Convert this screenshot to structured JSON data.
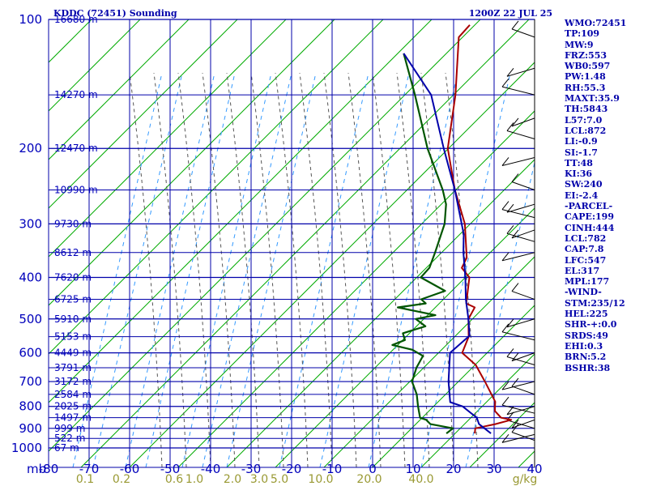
{
  "header": {
    "title": "KDDC (72451) Sounding",
    "time": "1200Z 22 JUL 25"
  },
  "params": [
    "WMO:72451",
    "TP:109",
    "MW:9",
    "FRZ:553",
    "WB0:597",
    "PW:1.48",
    "RH:55.3",
    "MAXT:35.9",
    "TH:5843",
    "L57:7.0",
    "LCL:872",
    "LI:-0.9",
    "SI:-1.7",
    "TT:48",
    "KI:36",
    "SW:240",
    "EI:-2.4",
    "-PARCEL-",
    "CAPE:199",
    "CINH:444",
    "LCL:782",
    "CAP:7.8",
    "LFC:547",
    "EL:317",
    "MPL:177",
    "-WIND-",
    "STM:235/12",
    "HEL:225",
    "SHR-+:0.0",
    "SRDS:49",
    "EHI:0.3",
    "BRN:5.2",
    "BSHR:38"
  ],
  "colors": {
    "grid": "#0000aa",
    "temperature": "#aa0000",
    "dewpoint": "#005500",
    "parcel": "#0000aa",
    "dry_adiabat": "#00aa00",
    "moist_adiabat": "#555555",
    "mixing_ratio": "#3399ff"
  },
  "chart_data": {
    "type": "line",
    "y_scale": "log",
    "ylabel": "mb",
    "ylim": [
      1000,
      100
    ],
    "xlim": [
      -80,
      40
    ],
    "pressure_ticks": [
      "100",
      "200",
      "300",
      "400",
      "500",
      "600",
      "700",
      "800",
      "900",
      "1000"
    ],
    "temperature_ticks": [
      "-80",
      "-70",
      "-60",
      "-50",
      "-40",
      "-30",
      "-20",
      "-10",
      "0",
      "10",
      "20",
      "30",
      "40"
    ],
    "mixing_ratio_ticks": [
      {
        "value": 0.1,
        "label": "0.1"
      },
      {
        "value": 0.2,
        "label": "0.2"
      },
      {
        "value": 0.6,
        "label": "0.6"
      },
      {
        "value": 1.0,
        "label": "1.0"
      },
      {
        "value": 2.0,
        "label": "2.0"
      },
      {
        "value": 3.0,
        "label": "3.0"
      },
      {
        "value": 5.0,
        "label": "5.0"
      },
      {
        "value": 10.0,
        "label": "10.0"
      },
      {
        "value": 20.0,
        "label": "20.0"
      },
      {
        "value": 40.0,
        "label": "40.0"
      }
    ],
    "mixing_ratio_unit": "g/kg",
    "height_labels": [
      {
        "p": 100,
        "label": "16680 m"
      },
      {
        "p": 150,
        "label": "14270 m"
      },
      {
        "p": 200,
        "label": "12470 m"
      },
      {
        "p": 250,
        "label": "10990 m"
      },
      {
        "p": 300,
        "label": "9730 m"
      },
      {
        "p": 350,
        "label": "8612 m"
      },
      {
        "p": 400,
        "label": "7620 m"
      },
      {
        "p": 450,
        "label": "6725 m"
      },
      {
        "p": 500,
        "label": "5910 m"
      },
      {
        "p": 550,
        "label": "5153 m"
      },
      {
        "p": 600,
        "label": "4449 m"
      },
      {
        "p": 650,
        "label": "3791 m"
      },
      {
        "p": 700,
        "label": "3172 m"
      },
      {
        "p": 750,
        "label": "2584 m"
      },
      {
        "p": 800,
        "label": "2025 m"
      },
      {
        "p": 850,
        "label": "1497 m"
      },
      {
        "p": 900,
        "label": "999 m"
      },
      {
        "p": 950,
        "label": "522 m"
      },
      {
        "p": 1000,
        "label": "67 m"
      }
    ],
    "series": [
      {
        "key": "temperature",
        "points": [
          {
            "p": 925,
            "t": 22
          },
          {
            "p": 900,
            "t": 21
          },
          {
            "p": 880,
            "t": 25
          },
          {
            "p": 860,
            "t": 28
          },
          {
            "p": 850,
            "t": 25
          },
          {
            "p": 820,
            "t": 22
          },
          {
            "p": 800,
            "t": 21
          },
          {
            "p": 780,
            "t": 20
          },
          {
            "p": 700,
            "t": 13
          },
          {
            "p": 640,
            "t": 7
          },
          {
            "p": 600,
            "t": 1
          },
          {
            "p": 550,
            "t": -1
          },
          {
            "p": 500,
            "t": -5
          },
          {
            "p": 470,
            "t": -6
          },
          {
            "p": 460,
            "t": -9
          },
          {
            "p": 400,
            "t": -14
          },
          {
            "p": 380,
            "t": -18
          },
          {
            "p": 360,
            "t": -19
          },
          {
            "p": 300,
            "t": -27
          },
          {
            "p": 250,
            "t": -37
          },
          {
            "p": 200,
            "t": -48
          },
          {
            "p": 150,
            "t": -58
          },
          {
            "p": 110,
            "t": -70
          },
          {
            "p": 103,
            "t": -70
          }
        ]
      },
      {
        "key": "dewpoint",
        "points": [
          {
            "p": 925,
            "t": 15
          },
          {
            "p": 900,
            "t": 15.5
          },
          {
            "p": 880,
            "t": 9
          },
          {
            "p": 860,
            "t": 7
          },
          {
            "p": 850,
            "t": 5
          },
          {
            "p": 800,
            "t": 2
          },
          {
            "p": 750,
            "t": -1
          },
          {
            "p": 700,
            "t": -5
          },
          {
            "p": 650,
            "t": -7
          },
          {
            "p": 610,
            "t": -8
          },
          {
            "p": 590,
            "t": -12
          },
          {
            "p": 575,
            "t": -18
          },
          {
            "p": 560,
            "t": -16
          },
          {
            "p": 540,
            "t": -18
          },
          {
            "p": 520,
            "t": -14
          },
          {
            "p": 500,
            "t": -18
          },
          {
            "p": 490,
            "t": -14
          },
          {
            "p": 470,
            "t": -25
          },
          {
            "p": 460,
            "t": -19
          },
          {
            "p": 450,
            "t": -21
          },
          {
            "p": 430,
            "t": -17
          },
          {
            "p": 400,
            "t": -26
          },
          {
            "p": 380,
            "t": -26
          },
          {
            "p": 350,
            "t": -28
          },
          {
            "p": 300,
            "t": -32
          },
          {
            "p": 270,
            "t": -36
          },
          {
            "p": 250,
            "t": -40
          },
          {
            "p": 200,
            "t": -53
          },
          {
            "p": 150,
            "t": -68
          },
          {
            "p": 120,
            "t": -80
          }
        ]
      },
      {
        "key": "parcel",
        "points": [
          {
            "p": 925,
            "t": 26
          },
          {
            "p": 880,
            "t": 21
          },
          {
            "p": 850,
            "t": 19
          },
          {
            "p": 800,
            "t": 13
          },
          {
            "p": 782,
            "t": 9
          },
          {
            "p": 700,
            "t": 4
          },
          {
            "p": 600,
            "t": -2
          },
          {
            "p": 547,
            "t": -1
          },
          {
            "p": 500,
            "t": -5
          },
          {
            "p": 450,
            "t": -10
          },
          {
            "p": 400,
            "t": -15
          },
          {
            "p": 350,
            "t": -21
          },
          {
            "p": 317,
            "t": -25
          },
          {
            "p": 250,
            "t": -37
          },
          {
            "p": 200,
            "t": -49
          },
          {
            "p": 150,
            "t": -64
          },
          {
            "p": 120,
            "t": -80
          }
        ]
      }
    ]
  }
}
